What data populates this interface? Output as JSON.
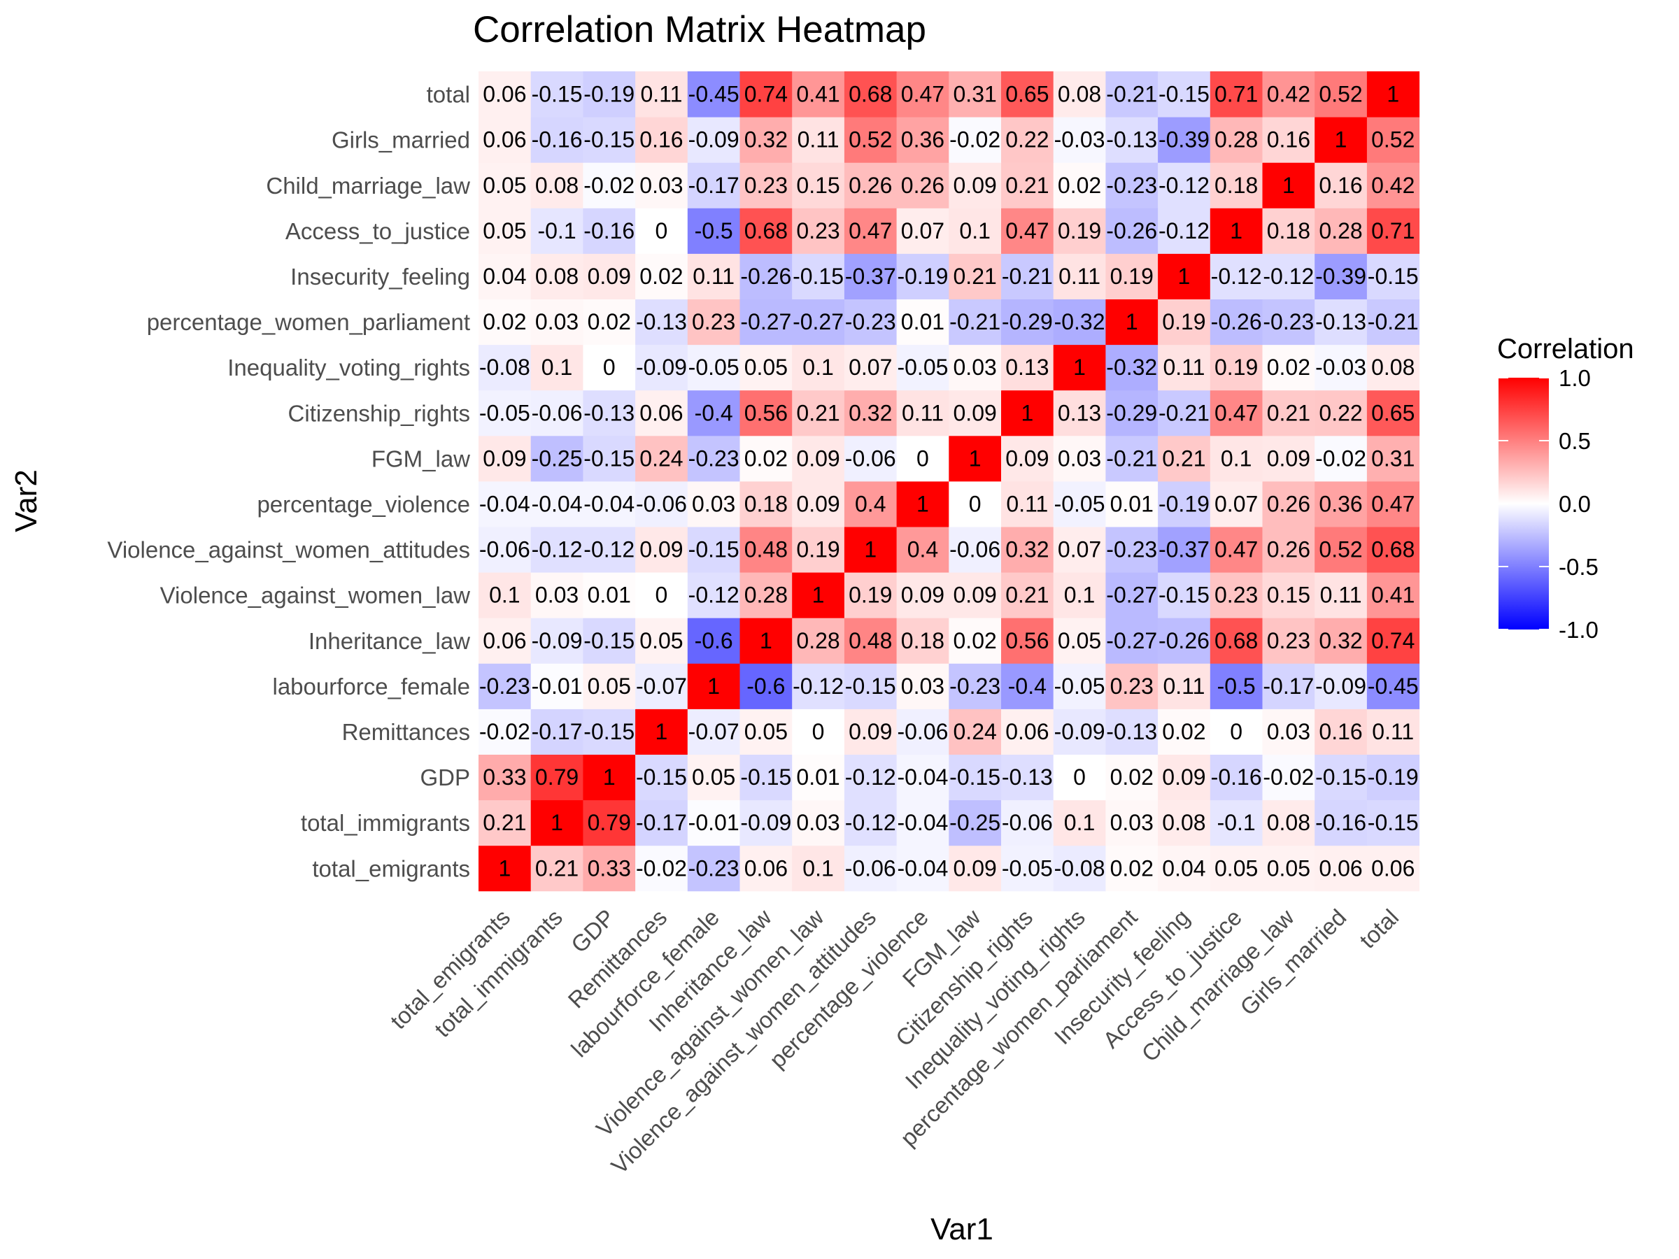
{
  "chart_data": {
    "type": "heatmap",
    "title": "Correlation Matrix Heatmap",
    "xlabel": "Var1",
    "ylabel": "Var2",
    "variables": [
      "total_emigrants",
      "total_immigrants",
      "GDP",
      "Remittances",
      "labourforce_female",
      "Inheritance_law",
      "Violence_against_women_law",
      "Violence_against_women_attitudes",
      "percentage_violence",
      "FGM_law",
      "Citizenship_rights",
      "Inequality_voting_rights",
      "percentage_women_parliament",
      "Insecurity_feeling",
      "Access_to_justice",
      "Child_marriage_law",
      "Girls_married",
      "total"
    ],
    "matrix": [
      [
        1,
        0.21,
        0.33,
        -0.02,
        -0.23,
        0.06,
        0.1,
        -0.06,
        -0.04,
        0.09,
        -0.05,
        -0.08,
        0.02,
        0.04,
        0.05,
        0.05,
        0.06,
        0.06
      ],
      [
        0.21,
        1,
        0.79,
        -0.17,
        -0.01,
        -0.09,
        0.03,
        -0.12,
        -0.04,
        -0.25,
        -0.06,
        0.1,
        0.03,
        0.08,
        -0.1,
        0.08,
        -0.16,
        -0.15
      ],
      [
        0.33,
        0.79,
        1,
        -0.15,
        0.05,
        -0.15,
        0.01,
        -0.12,
        -0.04,
        -0.15,
        -0.13,
        0,
        0.02,
        0.09,
        -0.16,
        -0.02,
        -0.15,
        -0.19
      ],
      [
        -0.02,
        -0.17,
        -0.15,
        1,
        -0.07,
        0.05,
        0,
        0.09,
        -0.06,
        0.24,
        0.06,
        -0.09,
        -0.13,
        0.02,
        0,
        0.03,
        0.16,
        0.11
      ],
      [
        -0.23,
        -0.01,
        0.05,
        -0.07,
        1,
        -0.6,
        -0.12,
        -0.15,
        0.03,
        -0.23,
        -0.4,
        -0.05,
        0.23,
        0.11,
        -0.5,
        -0.17,
        -0.09,
        -0.45
      ],
      [
        0.06,
        -0.09,
        -0.15,
        0.05,
        -0.6,
        1,
        0.28,
        0.48,
        0.18,
        0.02,
        0.56,
        0.05,
        -0.27,
        -0.26,
        0.68,
        0.23,
        0.32,
        0.74
      ],
      [
        0.1,
        0.03,
        0.01,
        0,
        -0.12,
        0.28,
        1,
        0.19,
        0.09,
        0.09,
        0.21,
        0.1,
        -0.27,
        -0.15,
        0.23,
        0.15,
        0.11,
        0.41
      ],
      [
        -0.06,
        -0.12,
        -0.12,
        0.09,
        -0.15,
        0.48,
        0.19,
        1,
        0.4,
        -0.06,
        0.32,
        0.07,
        -0.23,
        -0.37,
        0.47,
        0.26,
        0.52,
        0.68
      ],
      [
        -0.04,
        -0.04,
        -0.04,
        -0.06,
        0.03,
        0.18,
        0.09,
        0.4,
        1,
        0,
        0.11,
        -0.05,
        0.01,
        -0.19,
        0.07,
        0.26,
        0.36,
        0.47
      ],
      [
        0.09,
        -0.25,
        -0.15,
        0.24,
        -0.23,
        0.02,
        0.09,
        -0.06,
        0,
        1,
        0.09,
        0.03,
        -0.21,
        0.21,
        0.1,
        0.09,
        -0.02,
        0.31
      ],
      [
        -0.05,
        -0.06,
        -0.13,
        0.06,
        -0.4,
        0.56,
        0.21,
        0.32,
        0.11,
        0.09,
        1,
        0.13,
        -0.29,
        -0.21,
        0.47,
        0.21,
        0.22,
        0.65
      ],
      [
        -0.08,
        0.1,
        0,
        -0.09,
        -0.05,
        0.05,
        0.1,
        0.07,
        -0.05,
        0.03,
        0.13,
        1,
        -0.32,
        0.11,
        0.19,
        0.02,
        -0.03,
        0.08
      ],
      [
        0.02,
        0.03,
        0.02,
        -0.13,
        0.23,
        -0.27,
        -0.27,
        -0.23,
        0.01,
        -0.21,
        -0.29,
        -0.32,
        1,
        0.19,
        -0.26,
        -0.23,
        -0.13,
        -0.21
      ],
      [
        0.04,
        0.08,
        0.09,
        0.02,
        0.11,
        -0.26,
        -0.15,
        -0.37,
        -0.19,
        0.21,
        -0.21,
        0.11,
        0.19,
        1,
        -0.12,
        -0.12,
        -0.39,
        -0.15
      ],
      [
        0.05,
        -0.1,
        -0.16,
        0,
        -0.5,
        0.68,
        0.23,
        0.47,
        0.07,
        0.1,
        0.47,
        0.19,
        -0.26,
        -0.12,
        1,
        0.18,
        0.28,
        0.71
      ],
      [
        0.05,
        0.08,
        -0.02,
        0.03,
        -0.17,
        0.23,
        0.15,
        0.26,
        0.26,
        0.09,
        0.21,
        0.02,
        -0.23,
        -0.12,
        0.18,
        1,
        0.16,
        0.42
      ],
      [
        0.06,
        -0.16,
        -0.15,
        0.16,
        -0.09,
        0.32,
        0.11,
        0.52,
        0.36,
        -0.02,
        0.22,
        -0.03,
        -0.13,
        -0.39,
        0.28,
        0.16,
        1,
        0.52
      ],
      [
        0.06,
        -0.15,
        -0.19,
        0.11,
        -0.45,
        0.74,
        0.41,
        0.68,
        0.47,
        0.31,
        0.65,
        0.08,
        -0.21,
        -0.15,
        0.71,
        0.42,
        0.52,
        1
      ]
    ],
    "color_scale": {
      "low": "#0000ff",
      "mid": "#ffffff",
      "high": "#ff0000",
      "limits": [
        -1,
        1
      ]
    },
    "legend": {
      "title": "Correlation",
      "position": "right",
      "ticks": [
        1.0,
        0.5,
        0.0,
        -0.5,
        -1.0
      ],
      "tick_labels": [
        "1.0",
        "0.5",
        "0.0",
        "-0.5",
        "-1.0"
      ]
    },
    "grid": true
  }
}
